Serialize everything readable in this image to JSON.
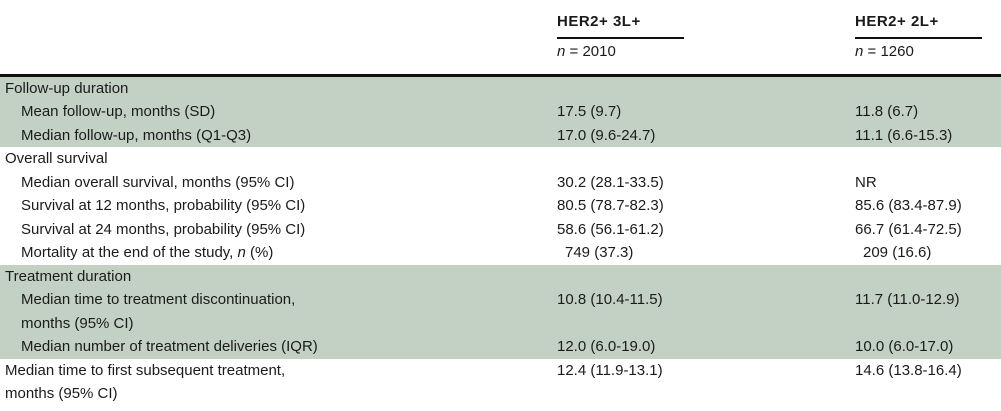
{
  "table": {
    "col_headers": [
      {
        "title": "HER2+ 3L+",
        "n_symbol": "n",
        "n_rest": "= 2010"
      },
      {
        "title": "HER2+ 2L+",
        "n_symbol": "n",
        "n_rest": "= 1260"
      }
    ],
    "rows": [
      {
        "label": "Follow-up duration",
        "v1": "",
        "v2": ""
      },
      {
        "label": "Mean follow-up, months (SD)",
        "v1": "17.5 (9.7)",
        "v2": "11.8 (6.7)"
      },
      {
        "label": "Median follow-up, months (Q1-Q3)",
        "v1": "17.0 (9.6-24.7)",
        "v2": "11.1 (6.6-15.3)"
      },
      {
        "label": "Overall survival",
        "v1": "",
        "v2": ""
      },
      {
        "label": "Median overall survival, months (95% CI)",
        "v1": "30.2 (28.1-33.5)",
        "v2": "NR"
      },
      {
        "label": "Survival at 12 months, probability (95% CI)",
        "v1": "80.5 (78.7-82.3)",
        "v2": "85.6 (83.4-87.9)"
      },
      {
        "label": "Survival at 24 months, probability (95% CI)",
        "v1": "58.6 (56.1-61.2)",
        "v2": "66.7 (61.4-72.5)"
      },
      {
        "label_pre": "Mortality at the end of the study, ",
        "label_italic": "n",
        "label_post": " (%)",
        "v1": "749 (37.3)",
        "v2": "209 (16.6)"
      },
      {
        "label": "Treatment duration",
        "v1": "",
        "v2": ""
      },
      {
        "label_line1": "Median time to treatment discontinuation,",
        "label_line2": "months (95% CI)",
        "v1": "10.8 (10.4-11.5)",
        "v2": "11.7 (11.0-12.9)"
      },
      {
        "label": "Median number of treatment deliveries (IQR)",
        "v1": "12.0 (6.0-19.0)",
        "v2": "10.0 (6.0-17.0)"
      },
      {
        "label_line1": "Median time to first subsequent treatment,",
        "label_line2": "months (95% CI)",
        "v1": "12.4 (11.9-13.1)",
        "v2": "14.6 (13.8-16.4)"
      }
    ]
  }
}
